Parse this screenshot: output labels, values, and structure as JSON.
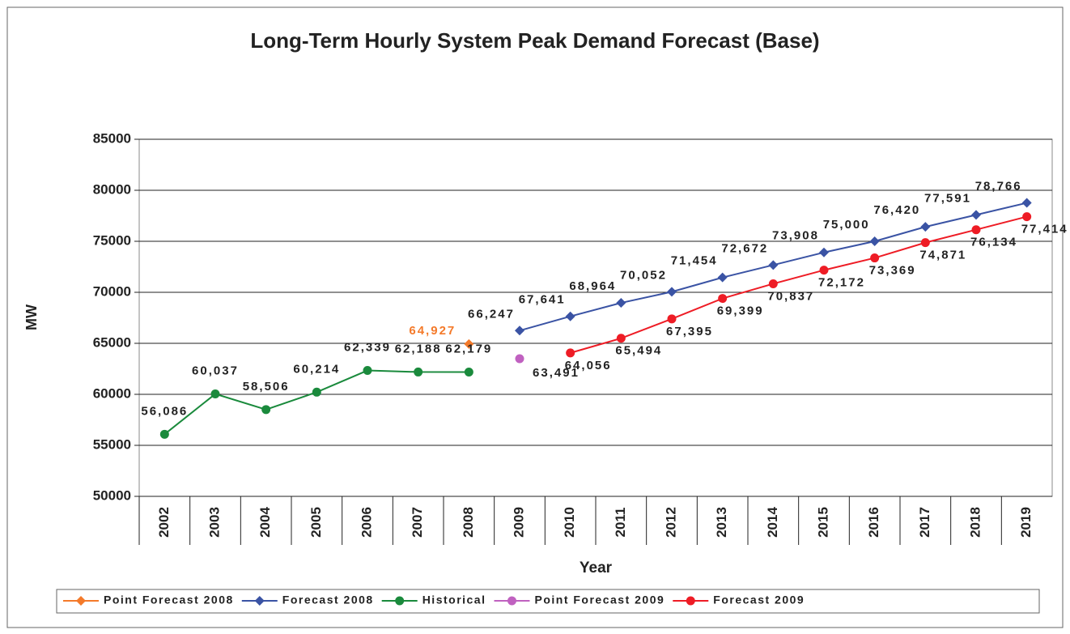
{
  "chart_data": {
    "type": "line",
    "title": "Long-Term Hourly System Peak Demand Forecast (Base)",
    "x_label": "Year",
    "y_label": "MW",
    "categories": [
      "2002",
      "2003",
      "2004",
      "2005",
      "2006",
      "2007",
      "2008",
      "2009",
      "2010",
      "2011",
      "2012",
      "2013",
      "2014",
      "2015",
      "2016",
      "2017",
      "2018",
      "2019"
    ],
    "ylim": [
      50000,
      85000
    ],
    "yticks": [
      50000,
      55000,
      60000,
      65000,
      70000,
      75000,
      80000,
      85000
    ],
    "grid": true,
    "legend": "bottom",
    "series": [
      {
        "name": "Point Forecast 2008",
        "color": "#f47a2a",
        "marker": "diamond",
        "values": [
          null,
          null,
          null,
          null,
          null,
          null,
          64927,
          null,
          null,
          null,
          null,
          null,
          null,
          null,
          null,
          null,
          null,
          null
        ],
        "value_labels": [
          null,
          null,
          null,
          null,
          null,
          null,
          "64,927",
          null,
          null,
          null,
          null,
          null,
          null,
          null,
          null,
          null,
          null,
          null
        ]
      },
      {
        "name": "Forecast 2008",
        "color": "#3a53a4",
        "marker": "diamond",
        "values": [
          null,
          null,
          null,
          null,
          null,
          null,
          null,
          66247,
          67641,
          68964,
          70052,
          71454,
          72672,
          73908,
          75000,
          76420,
          77591,
          78766
        ],
        "value_labels": [
          null,
          null,
          null,
          null,
          null,
          null,
          null,
          "66,247",
          "67,641",
          "68,964",
          "70,052",
          "71,454",
          "72,672",
          "73,908",
          "75,000",
          "76,420",
          "77,591",
          "78,766"
        ]
      },
      {
        "name": "Historical",
        "color": "#1a8a3c",
        "marker": "circle",
        "values": [
          56086,
          60037,
          58506,
          60214,
          62339,
          62188,
          62179,
          null,
          null,
          null,
          null,
          null,
          null,
          null,
          null,
          null,
          null,
          null
        ],
        "value_labels": [
          "56,086",
          "60,037",
          "58,506",
          "60,214",
          "62,339",
          "62,188",
          "62,179",
          null,
          null,
          null,
          null,
          null,
          null,
          null,
          null,
          null,
          null,
          null
        ]
      },
      {
        "name": "Point Forecast 2009",
        "color": "#c061c0",
        "marker": "circle",
        "values": [
          null,
          null,
          null,
          null,
          null,
          null,
          null,
          63491,
          null,
          null,
          null,
          null,
          null,
          null,
          null,
          null,
          null,
          null
        ],
        "value_labels": [
          null,
          null,
          null,
          null,
          null,
          null,
          null,
          "63,491",
          null,
          null,
          null,
          null,
          null,
          null,
          null,
          null,
          null,
          null
        ]
      },
      {
        "name": "Forecast 2009",
        "color": "#ee1c25",
        "marker": "circle",
        "values": [
          null,
          null,
          null,
          null,
          null,
          null,
          null,
          null,
          64056,
          65494,
          67395,
          69399,
          70837,
          72172,
          73369,
          74871,
          76134,
          77414
        ],
        "value_labels": [
          null,
          null,
          null,
          null,
          null,
          null,
          null,
          null,
          "64,056",
          "65,494",
          "67,395",
          "69,399",
          "70,837",
          "72,172",
          "73,369",
          "74,871",
          "76,134",
          "77,414"
        ]
      }
    ]
  }
}
